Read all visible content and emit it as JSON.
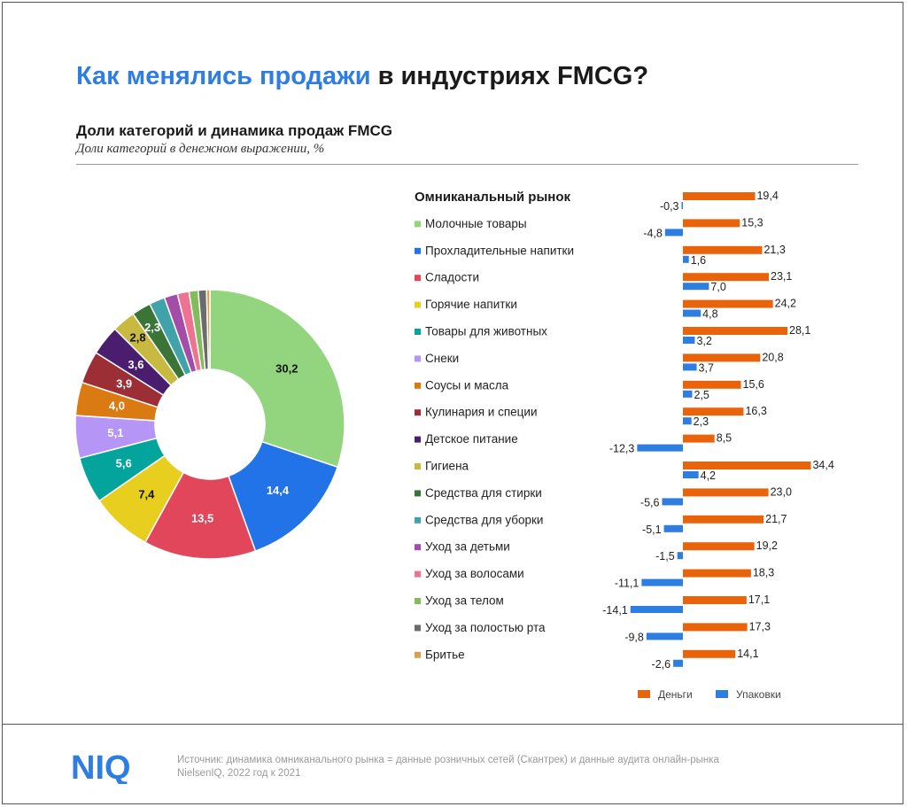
{
  "title": {
    "highlight": "Как менялись продажи",
    "rest": " в индустриях FMCG?"
  },
  "subtitle": "Доли категорий и динамика продаж FMCG",
  "subnote": "Доли категорий в денежном выражении, %",
  "legend_header": "Омниканальный рынок",
  "bar_legend": {
    "money": "Деньги",
    "units": "Упаковки"
  },
  "colors": {
    "money": "#e8630a",
    "units": "#2e7de1",
    "accent": "#2e7de1"
  },
  "source": {
    "line1": "Источник: динамика омниканального рынка = данные розничных сетей (Скантрек) и данные аудита онлайн-рынка",
    "line2": "NielsenIQ, 2022 год к 2021"
  },
  "logo_text": "NIQ",
  "chart_data": [
    {
      "type": "pie",
      "title": "",
      "categories": [
        "Молочные товары",
        "Прохладительные напитки",
        "Сладости",
        "Горячие напитки",
        "Товары для животных",
        "Снеки",
        "Соусы и масла",
        "Кулинария и специи",
        "Детское питание",
        "Гигиена",
        "Средства для стирки",
        "Средства для уборки",
        "Уход за детьми",
        "Уход за волосами",
        "Уход за телом",
        "Уход за полостью рта",
        "Бритье"
      ],
      "values": [
        30.2,
        14.4,
        13.5,
        7.4,
        5.6,
        5.1,
        4.0,
        3.9,
        3.6,
        2.8,
        2.3,
        1.9,
        1.6,
        1.4,
        1.1,
        1.0,
        0.4
      ],
      "labels": [
        "30,2",
        "14,4",
        "13,5",
        "7,4",
        "5,6",
        "5,1",
        "4,0",
        "3,9",
        "3,6",
        "2,8",
        "2,3",
        "",
        "",
        "",
        "",
        "",
        ""
      ],
      "colors": [
        "#93d57f",
        "#2273e8",
        "#e2465a",
        "#e8cf1f",
        "#03a49b",
        "#b596f7",
        "#d97a12",
        "#9c2e36",
        "#4b1d6e",
        "#c8b940",
        "#3a7436",
        "#3fa3a9",
        "#a34ca8",
        "#ee7393",
        "#83bc5a",
        "#6b6b6b",
        "#d9a04e"
      ],
      "donut": true
    },
    {
      "type": "bar",
      "title": "",
      "orientation": "horizontal",
      "categories": [
        "Омниканальный рынок",
        "Молочные товары",
        "Прохладительные напитки",
        "Сладости",
        "Горячие напитки",
        "Товары для животных",
        "Снеки",
        "Соусы и масла",
        "Кулинария и специи",
        "Детское питание",
        "Гигиена",
        "Средства для стирки",
        "Средства для уборки",
        "Уход за детьми",
        "Уход за волосами",
        "Уход за телом",
        "Уход за полостью рта",
        "Бритье"
      ],
      "series": [
        {
          "name": "Деньги",
          "values": [
            19.4,
            15.3,
            21.3,
            23.1,
            24.2,
            28.1,
            20.8,
            15.6,
            16.3,
            8.5,
            34.4,
            23.0,
            21.7,
            19.2,
            18.3,
            17.1,
            17.3,
            14.1
          ],
          "labels": [
            "19,4",
            "15,3",
            "21,3",
            "23,1",
            "24,2",
            "28,1",
            "20,8",
            "15,6",
            "16,3",
            "8,5",
            "34,4",
            "23,0",
            "21,7",
            "19,2",
            "18,3",
            "17,1",
            "17,3",
            "14,1"
          ]
        },
        {
          "name": "Упаковки",
          "values": [
            -0.3,
            -4.8,
            1.6,
            7.0,
            4.8,
            3.2,
            3.7,
            2.5,
            2.3,
            -12.3,
            4.2,
            -5.6,
            -5.1,
            -1.5,
            -11.1,
            -14.1,
            -9.8,
            -2.6
          ],
          "labels": [
            "-0,3",
            "-4,8",
            "1,6",
            "7,0",
            "4,8",
            "3,2",
            "3,7",
            "2,5",
            "2,3",
            "-12,3",
            "4,2",
            "-5,6",
            "-5,1",
            "-1,5",
            "-11,1",
            "-14,1",
            "-9,8",
            "-2,6"
          ]
        }
      ],
      "legend": "bottom"
    }
  ]
}
